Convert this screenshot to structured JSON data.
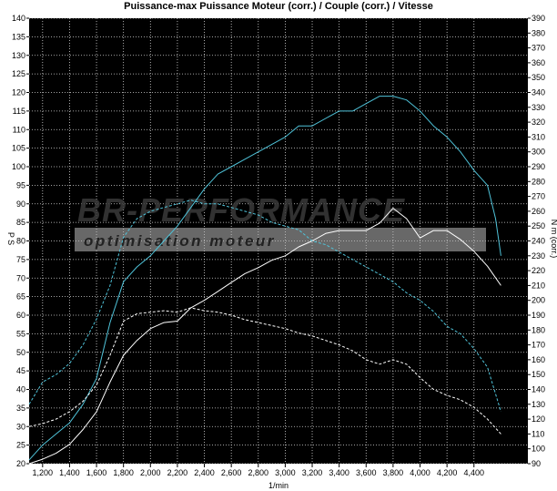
{
  "chart_data": {
    "type": "line",
    "title": "Puissance-max Puissance Moteur (corr.) / Couple (corr.) / Vitesse",
    "xlabel": "1/min",
    "ylabel_left": "P S",
    "ylabel_right": "N m (corr.)",
    "xlim": [
      1100,
      4800
    ],
    "ylim_left": [
      20,
      140
    ],
    "ylim_right": [
      90,
      390
    ],
    "x_ticks": [
      1200,
      1400,
      1600,
      1800,
      2000,
      2200,
      2400,
      2600,
      2800,
      3000,
      3200,
      3400,
      3600,
      3800,
      4000,
      4200,
      4400
    ],
    "x_tick_labels": [
      "1,200",
      "1,400",
      "1,600",
      "1,800",
      "2,000",
      "2,200",
      "2,400",
      "2,600",
      "2,800",
      "3,000",
      "3,200",
      "3,400",
      "3,600",
      "3,800",
      "4,000",
      "4,200",
      "4,400"
    ],
    "y_ticks_left": [
      20,
      25,
      30,
      35,
      40,
      45,
      50,
      55,
      60,
      65,
      70,
      75,
      80,
      85,
      90,
      95,
      100,
      105,
      110,
      115,
      120,
      125,
      130,
      135,
      140
    ],
    "y_ticks_right": [
      90,
      100,
      110,
      120,
      130,
      140,
      150,
      160,
      170,
      180,
      190,
      200,
      210,
      220,
      230,
      240,
      250,
      260,
      270,
      280,
      290,
      300,
      310,
      320,
      330,
      340,
      350,
      360,
      370,
      380,
      390
    ],
    "grid": true,
    "background": "#000000",
    "series": [
      {
        "axis": "left",
        "style": "solid",
        "color": "#4fc3d9",
        "x": [
          1100,
          1200,
          1300,
          1400,
          1500,
          1600,
          1700,
          1800,
          1900,
          2000,
          2100,
          2200,
          2300,
          2400,
          2500,
          2600,
          2700,
          2800,
          2900,
          3000,
          3100,
          3200,
          3300,
          3400,
          3500,
          3600,
          3700,
          3800,
          3900,
          4000,
          4100,
          4200,
          4300,
          4400,
          4500,
          4560,
          4600
        ],
        "values": [
          21,
          25,
          28,
          31,
          36,
          43,
          58,
          69,
          73,
          76,
          80,
          84,
          89,
          94,
          98,
          100,
          102,
          104,
          106,
          108,
          111,
          111,
          113,
          115,
          115,
          117,
          119,
          119,
          118,
          115,
          111,
          108,
          104,
          99,
          95,
          86,
          76
        ]
      },
      {
        "axis": "right",
        "style": "solid",
        "color": "#ffffff",
        "x": [
          1100,
          1200,
          1300,
          1400,
          1500,
          1600,
          1700,
          1800,
          1900,
          2000,
          2100,
          2200,
          2300,
          2400,
          2500,
          2600,
          2700,
          2800,
          2900,
          3000,
          3100,
          3200,
          3300,
          3400,
          3500,
          3600,
          3700,
          3800,
          3900,
          4000,
          4100,
          4200,
          4300,
          4400,
          4500,
          4600
        ],
        "values": [
          90,
          93,
          97,
          103,
          113,
          125,
          145,
          163,
          173,
          181,
          185,
          186,
          195,
          200,
          206,
          212,
          218,
          222,
          227,
          230,
          236,
          240,
          245,
          247,
          247,
          247,
          252,
          262,
          255,
          242,
          247,
          247,
          241,
          233,
          223,
          210
        ]
      },
      {
        "axis": "left",
        "style": "dashed",
        "color": "#4fc3d9",
        "x": [
          1100,
          1200,
          1300,
          1400,
          1500,
          1600,
          1700,
          1800,
          1900,
          2000,
          2100,
          2200,
          2300,
          2400,
          2500,
          2600,
          2700,
          2800,
          2900,
          3000,
          3100,
          3200,
          3300,
          3400,
          3500,
          3600,
          3700,
          3800,
          3900,
          4000,
          4100,
          4200,
          4300,
          4400,
          4500,
          4600
        ],
        "values": [
          36,
          42,
          44,
          47,
          52,
          59,
          68,
          81,
          86,
          88,
          89,
          90,
          91,
          90,
          90,
          89,
          88,
          87,
          85,
          84,
          83,
          80,
          79,
          77,
          75,
          73,
          71,
          69,
          66,
          64,
          61,
          57,
          55,
          51,
          46,
          34
        ]
      },
      {
        "axis": "right",
        "style": "dashed",
        "color": "#ffffff",
        "x": [
          1100,
          1200,
          1300,
          1400,
          1500,
          1600,
          1700,
          1800,
          1900,
          2000,
          2100,
          2200,
          2300,
          2400,
          2500,
          2600,
          2700,
          2800,
          2900,
          3000,
          3100,
          3200,
          3300,
          3400,
          3500,
          3600,
          3700,
          3800,
          3900,
          4000,
          4100,
          4200,
          4300,
          4400,
          4500,
          4600
        ],
        "values": [
          115,
          117,
          120,
          125,
          132,
          143,
          163,
          186,
          191,
          192,
          193,
          192,
          195,
          193,
          192,
          190,
          187,
          185,
          183,
          181,
          178,
          176,
          173,
          170,
          166,
          160,
          157,
          160,
          157,
          148,
          140,
          136,
          133,
          128,
          120,
          110
        ]
      }
    ],
    "watermark": {
      "line1": "BR-PERFORMANCE",
      "line2": "optimisation moteur"
    }
  }
}
